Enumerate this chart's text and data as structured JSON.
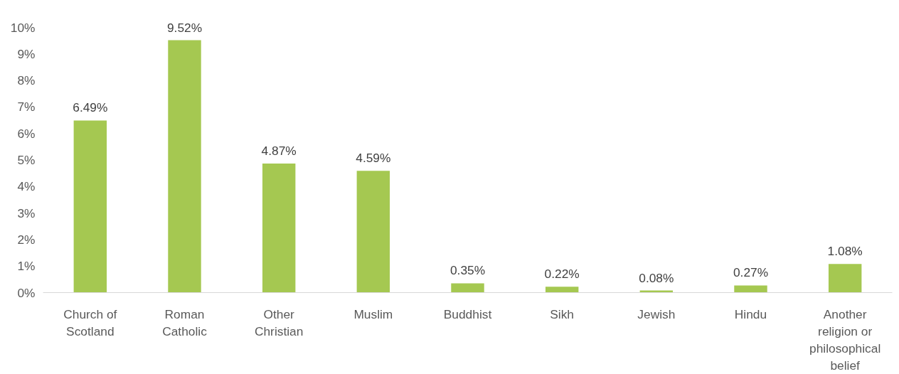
{
  "chart_data": {
    "type": "bar",
    "categories": [
      "Church of Scotland",
      "Roman Catholic",
      "Other Christian",
      "Muslim",
      "Buddhist",
      "Sikh",
      "Jewish",
      "Hindu",
      "Another religion or philosophical belief"
    ],
    "values": [
      6.49,
      9.52,
      4.87,
      4.59,
      0.35,
      0.22,
      0.08,
      0.27,
      1.08
    ],
    "value_labels": [
      "6.49%",
      "9.52%",
      "4.87%",
      "4.59%",
      "0.35%",
      "0.22%",
      "0.08%",
      "0.27%",
      "1.08%"
    ],
    "color": "#a5c851",
    "ylim": [
      0,
      10
    ],
    "yticks": [
      {
        "value": 0,
        "label": "0%"
      },
      {
        "value": 1,
        "label": "1%"
      },
      {
        "value": 2,
        "label": "2%"
      },
      {
        "value": 3,
        "label": "3%"
      },
      {
        "value": 4,
        "label": "4%"
      },
      {
        "value": 5,
        "label": "5%"
      },
      {
        "value": 6,
        "label": "6%"
      },
      {
        "value": 7,
        "label": "7%"
      },
      {
        "value": 8,
        "label": "8%"
      },
      {
        "value": 9,
        "label": "9%"
      },
      {
        "value": 10,
        "label": "10%"
      }
    ],
    "grid": false
  }
}
